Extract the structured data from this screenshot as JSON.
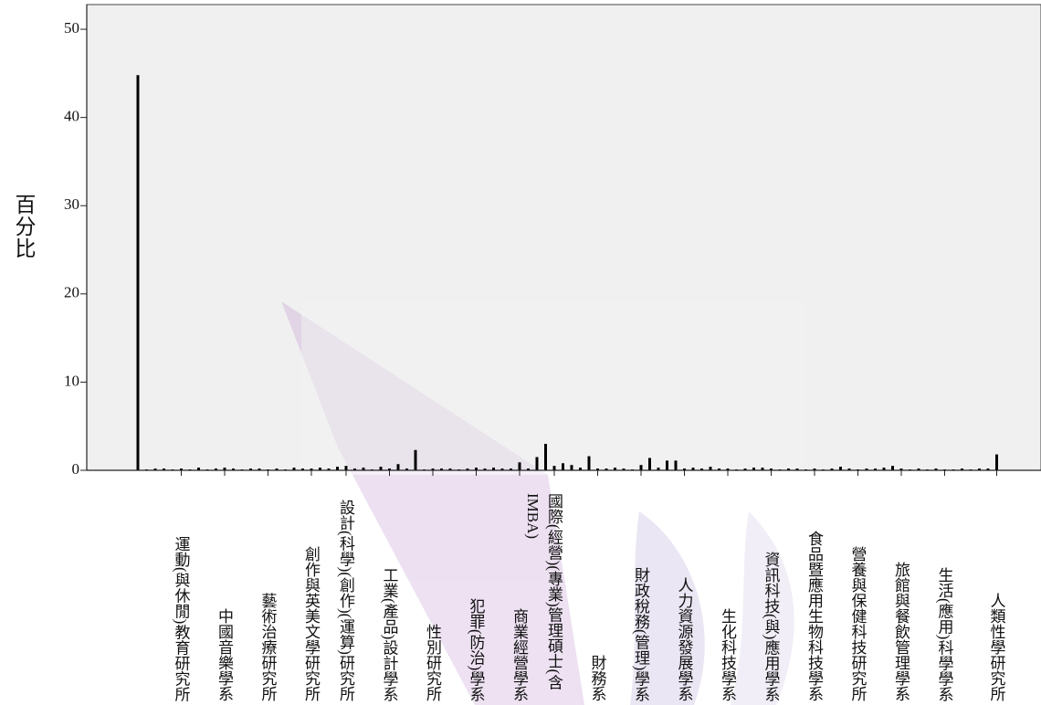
{
  "chart_data": {
    "type": "bar",
    "y_axis_label": "百分比",
    "color": "#000000",
    "ylim": [
      0,
      52.8
    ],
    "yticks": [
      0,
      10,
      20,
      30,
      40,
      50
    ],
    "categories": [
      null,
      null,
      null,
      null,
      null,
      "運動(與休閒)教育研究所",
      null,
      null,
      null,
      null,
      "中國音樂學系",
      null,
      null,
      null,
      null,
      "藝術治療研究所",
      null,
      null,
      null,
      null,
      "創作與英美文學研究所",
      null,
      null,
      null,
      "設計(科學)(創作)(運算)研究所",
      null,
      null,
      null,
      null,
      "工業(產品)設計學系",
      null,
      null,
      null,
      null,
      "性別研究所",
      null,
      null,
      null,
      null,
      "犯罪(防治)學系",
      null,
      null,
      null,
      null,
      "商業經營學系",
      null,
      null,
      null,
      "國際(經營)(專業)管理碩士(含IMBA)",
      null,
      null,
      null,
      null,
      "財務系",
      null,
      null,
      null,
      null,
      "財政稅務(管理)學系",
      null,
      null,
      null,
      null,
      "人力資源發展學系",
      null,
      null,
      null,
      null,
      "生化科技學系",
      null,
      null,
      null,
      null,
      "資訊科技(與)應用學系",
      null,
      null,
      null,
      null,
      "食品暨應用生物科技學系",
      null,
      null,
      null,
      null,
      "營養與保健科技研究所",
      null,
      null,
      null,
      null,
      "旅館與餐飲管理學系",
      null,
      null,
      null,
      null,
      "生活(應用)科學學系",
      null,
      null,
      null,
      null,
      null,
      "人類性學研究所"
    ],
    "values": [
      44.8,
      0.1,
      0.2,
      0.2,
      0.1,
      0.2,
      0.1,
      0.3,
      0.1,
      0.2,
      0.3,
      0.2,
      0.1,
      0.2,
      0.2,
      0.1,
      0.2,
      0.1,
      0.3,
      0.2,
      0.2,
      0.3,
      0.2,
      0.4,
      0.5,
      0.2,
      0.3,
      0.1,
      0.4,
      0.2,
      0.7,
      0.2,
      2.3,
      0.1,
      0.2,
      0.2,
      0.2,
      0.1,
      0.2,
      0.3,
      0.2,
      0.3,
      0.2,
      0.2,
      0.9,
      0.2,
      1.5,
      3.0,
      0.5,
      0.8,
      0.6,
      0.3,
      1.6,
      0.2,
      0.2,
      0.3,
      0.2,
      0.1,
      0.6,
      1.4,
      0.3,
      1.1,
      1.1,
      0.2,
      0.3,
      0.2,
      0.4,
      0.2,
      0.2,
      0.1,
      0.2,
      0.3,
      0.3,
      0.2,
      0.1,
      0.2,
      0.2,
      0.1,
      0.2,
      0.1,
      0.2,
      0.4,
      0.2,
      0.1,
      0.2,
      0.2,
      0.3,
      0.5,
      0.2,
      0.1,
      0.2,
      0.1,
      0.2,
      0.1,
      0.1,
      0.2,
      0.1,
      0.2,
      0.2,
      1.8
    ]
  }
}
